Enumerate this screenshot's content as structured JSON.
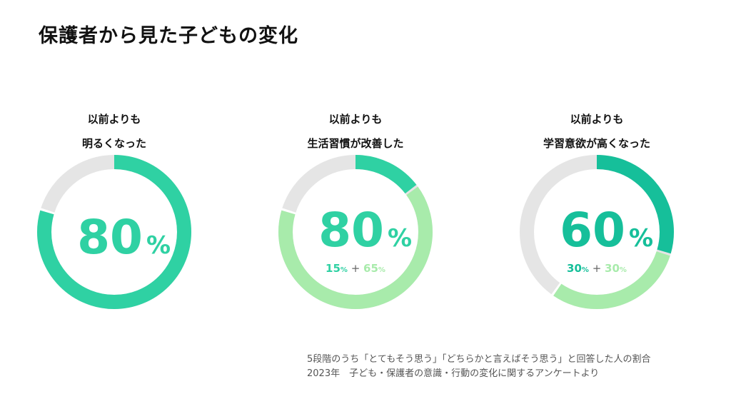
{
  "title": "保護者から見た子どもの変化",
  "colors": {
    "track": "#e5e5e5",
    "teal_dark": "#16bf9a",
    "teal": "#2fd1a3",
    "green_light": "#a8ebab",
    "text": "#111111"
  },
  "chart_data": [
    {
      "type": "pie",
      "caption_lines": [
        "以前よりも",
        "明るくなった"
      ],
      "total_value": "80",
      "total_unit": "%",
      "segments": [
        {
          "value": 80,
          "color": "#2fd1a3"
        }
      ],
      "breakdown": null
    },
    {
      "type": "pie",
      "caption_lines": [
        "以前よりも",
        "生活習慣が改善した"
      ],
      "total_value": "80",
      "total_unit": "%",
      "segments": [
        {
          "value": 15,
          "color": "#2fd1a3"
        },
        {
          "value": 65,
          "color": "#a8ebab"
        }
      ],
      "breakdown": {
        "first_value": "15",
        "first_unit": "%",
        "plus": "+",
        "second_value": "65",
        "second_unit": "%"
      }
    },
    {
      "type": "pie",
      "caption_lines": [
        "以前よりも",
        "学習意欲が高くなった"
      ],
      "total_value": "60",
      "total_unit": "%",
      "segments": [
        {
          "value": 30,
          "color": "#16bf9a"
        },
        {
          "value": 30,
          "color": "#a8ebab"
        }
      ],
      "breakdown": {
        "first_value": "30",
        "first_unit": "%",
        "plus": "+",
        "second_value": "30",
        "second_unit": "%"
      }
    }
  ],
  "footnote": {
    "line1": "5段階のうち「とてもそう思う」「どちらかと言えばそう思う」と回答した人の割合",
    "line2": "2023年　子ども・保護者の意識・行動の変化に関するアンケートより"
  }
}
